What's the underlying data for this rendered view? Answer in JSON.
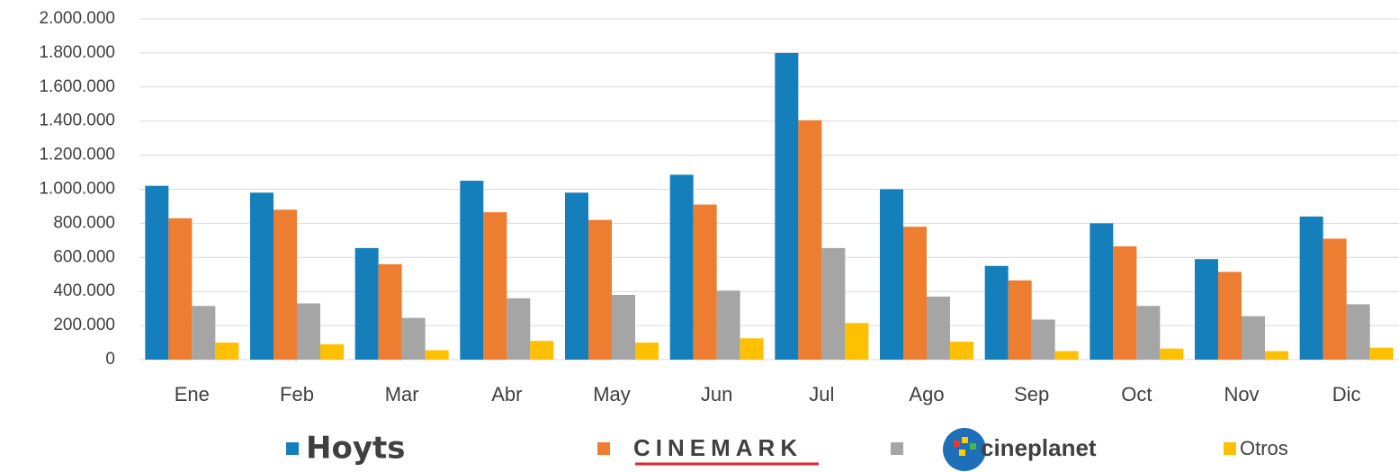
{
  "chart_data": {
    "type": "bar",
    "categories": [
      "Ene",
      "Feb",
      "Mar",
      "Abr",
      "May",
      "Jun",
      "Jul",
      "Ago",
      "Sep",
      "Oct",
      "Nov",
      "Dic"
    ],
    "series": [
      {
        "name": "Hoyts",
        "color": "#157fbb",
        "values": [
          1020000,
          980000,
          655000,
          1050000,
          980000,
          1085000,
          1800000,
          1000000,
          550000,
          800000,
          590000,
          840000
        ]
      },
      {
        "name": "CINEMARK",
        "color": "#ed7d31",
        "values": [
          830000,
          880000,
          560000,
          865000,
          820000,
          910000,
          1405000,
          780000,
          465000,
          665000,
          515000,
          710000
        ]
      },
      {
        "name": "cineplanet",
        "color": "#a5a5a5",
        "values": [
          315000,
          330000,
          245000,
          360000,
          380000,
          405000,
          655000,
          370000,
          235000,
          315000,
          255000,
          325000
        ]
      },
      {
        "name": "Otros",
        "color": "#ffc000",
        "values": [
          100000,
          90000,
          55000,
          110000,
          100000,
          125000,
          215000,
          105000,
          50000,
          65000,
          50000,
          70000
        ]
      }
    ],
    "ylim": [
      0,
      2000000
    ],
    "yticks": [
      0,
      {
        "value": 200000,
        "label": "200.000"
      },
      {
        "value": 400000,
        "label": "400.000"
      },
      {
        "value": 600000,
        "label": "600.000"
      },
      {
        "value": 800000,
        "label": "800.000"
      },
      {
        "value": 1000000,
        "label": "1.000.000"
      },
      {
        "value": 1200000,
        "label": "1.200.000"
      },
      {
        "value": 1400000,
        "label": "1.400.000"
      },
      {
        "value": 1600000,
        "label": "1.600.000"
      },
      {
        "value": 1800000,
        "label": "1.800.000"
      },
      {
        "value": 2000000,
        "label": "2.000.000"
      }
    ],
    "grid": true,
    "legend": "bottom"
  }
}
